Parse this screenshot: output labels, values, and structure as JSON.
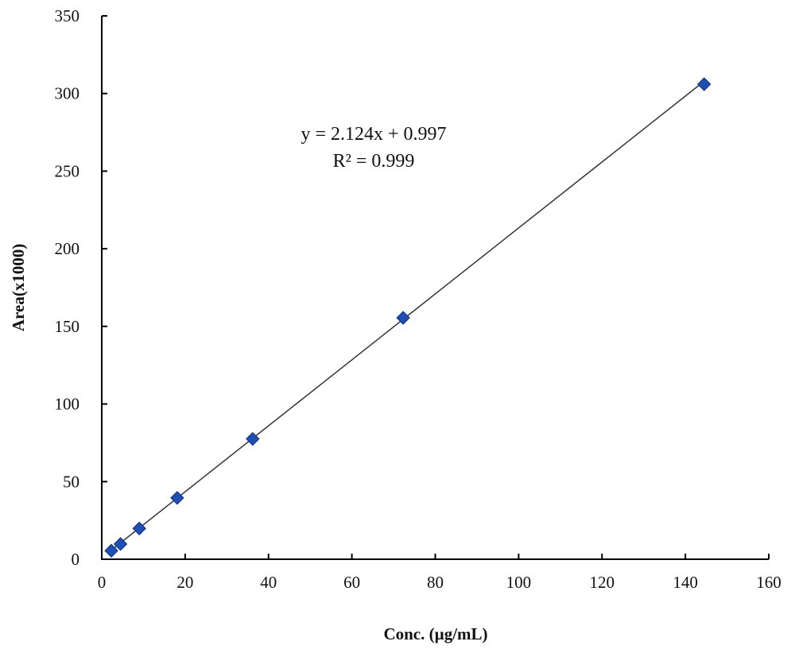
{
  "chart_data": {
    "type": "scatter",
    "title": "",
    "xlabel": "Conc. (µg/mL)",
    "ylabel": "Area(x1000)",
    "xlim": [
      0,
      160
    ],
    "ylim": [
      0,
      350
    ],
    "xticks": [
      0,
      20,
      40,
      60,
      80,
      100,
      120,
      140,
      160
    ],
    "yticks": [
      0,
      50,
      100,
      150,
      200,
      250,
      300,
      350
    ],
    "grid": false,
    "legend": "none",
    "marker": "diamond",
    "marker_color": "#1f4fb4",
    "x": [
      2.3,
      4.5,
      9.0,
      18.1,
      36.2,
      72.3,
      144.5
    ],
    "y": [
      5.5,
      9.8,
      19.8,
      39.5,
      77.5,
      155.5,
      306.0
    ],
    "trendline": {
      "type": "linear",
      "slope": 2.124,
      "intercept": 0.997,
      "color": "#333333"
    },
    "annotations": [
      "y = 2.124x + 0.997",
      "R² = 0.999"
    ]
  }
}
